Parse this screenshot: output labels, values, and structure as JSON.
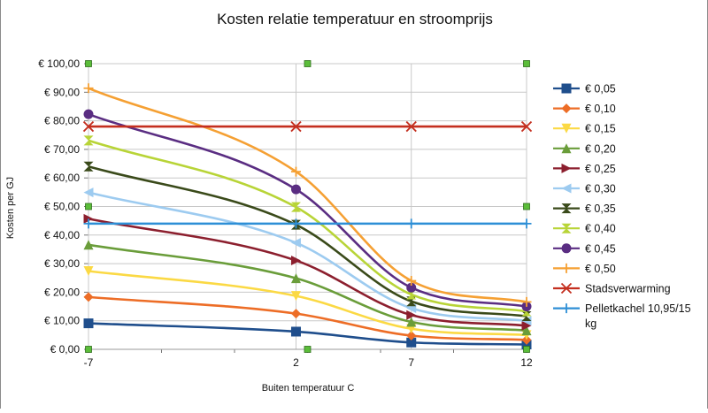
{
  "chart_data": {
    "type": "line",
    "title": "Kosten relatie temperatuur en stroomprijs",
    "xlabel": "Buiten temperatuur C",
    "ylabel": "Kosten per GJ",
    "x": [
      -7,
      2,
      7,
      12
    ],
    "x_tick_labels": [
      "-7",
      "2",
      "7",
      "12"
    ],
    "xlim": [
      -7,
      12
    ],
    "ylim": [
      0,
      100
    ],
    "y_tick_labels": [
      "€ 0,00",
      "€ 10,00",
      "€ 20,00",
      "€ 30,00",
      "€ 40,00",
      "€ 50,00",
      "€ 60,00",
      "€ 70,00",
      "€ 80,00",
      "€ 90,00",
      "€ 100,00"
    ],
    "grid": true,
    "legend_position": "right",
    "series": [
      {
        "name": "€ 0,05",
        "color": "#1f4e8c",
        "marker": "square",
        "values": [
          9.1,
          6.2,
          2.4,
          1.7
        ]
      },
      {
        "name": "€ 0,10",
        "color": "#ed6d26",
        "marker": "diamond",
        "values": [
          18.3,
          12.5,
          4.8,
          3.3
        ]
      },
      {
        "name": "€ 0,15",
        "color": "#fbd944",
        "marker": "triangle-down",
        "values": [
          27.4,
          18.7,
          7.2,
          5.0
        ]
      },
      {
        "name": "€ 0,20",
        "color": "#6a9d3a",
        "marker": "triangle-up",
        "values": [
          36.6,
          24.9,
          9.6,
          6.6
        ]
      },
      {
        "name": "€ 0,25",
        "color": "#8c1f2e",
        "marker": "triangle-right",
        "values": [
          45.7,
          31.1,
          12.0,
          8.3
        ]
      },
      {
        "name": "€ 0,30",
        "color": "#9dcbf0",
        "marker": "triangle-left",
        "values": [
          54.9,
          37.3,
          14.4,
          10.0
        ]
      },
      {
        "name": "€ 0,35",
        "color": "#3a4a1a",
        "marker": "bowtie",
        "values": [
          64.0,
          43.6,
          16.8,
          11.6
        ]
      },
      {
        "name": "€ 0,40",
        "color": "#b8d437",
        "marker": "hourglass",
        "values": [
          73.1,
          49.8,
          19.2,
          13.3
        ]
      },
      {
        "name": "€ 0,45",
        "color": "#5a2d82",
        "marker": "circle",
        "values": [
          82.3,
          56.0,
          21.6,
          15.0
        ]
      },
      {
        "name": "€ 0,50",
        "color": "#f5a033",
        "marker": "plus",
        "values": [
          91.4,
          62.2,
          24.0,
          16.6
        ]
      },
      {
        "name": "Stadsverwarming",
        "color": "#c42f1f",
        "marker": "x",
        "values": [
          78.0,
          78.0,
          78.0,
          78.0
        ]
      },
      {
        "name": "Pelletkachel 10,95/15 kg",
        "color": "#2e8fd6",
        "marker": "plus",
        "values": [
          44.0,
          44.0,
          44.0,
          44.0
        ]
      }
    ],
    "colors": {
      "grid": "#c8c8c8",
      "handle": "#5bbd3a"
    }
  }
}
